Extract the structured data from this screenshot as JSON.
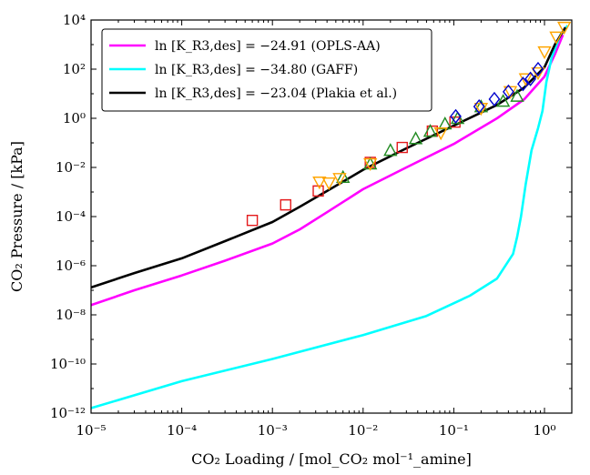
{
  "chart_data": {
    "type": "line",
    "xlabel": "CO₂ Loading / [mol_CO₂ mol⁻¹_amine]",
    "ylabel": "CO₂ Pressure / [kPa]",
    "x_scale": "log",
    "y_scale": "log",
    "xlim": [
      1e-05,
      2
    ],
    "ylim": [
      1e-12,
      10000.0
    ],
    "grid": false,
    "legend_position": "top-left",
    "x_ticks": [
      {
        "value": 1e-05,
        "label": "10⁻⁵"
      },
      {
        "value": 0.0001,
        "label": "10⁻⁴"
      },
      {
        "value": 0.001,
        "label": "10⁻³"
      },
      {
        "value": 0.01,
        "label": "10⁻²"
      },
      {
        "value": 0.1,
        "label": "10⁻¹"
      },
      {
        "value": 1,
        "label": "10⁰"
      }
    ],
    "y_ticks": [
      {
        "value": 1e-12,
        "label": "10⁻¹²"
      },
      {
        "value": 1e-10,
        "label": "10⁻¹⁰"
      },
      {
        "value": 1e-08,
        "label": "10⁻⁸"
      },
      {
        "value": 1e-06,
        "label": "10⁻⁶"
      },
      {
        "value": 0.0001,
        "label": "10⁻⁴"
      },
      {
        "value": 0.01,
        "label": "10⁻²"
      },
      {
        "value": 1,
        "label": "10⁰"
      },
      {
        "value": 100.0,
        "label": "10²"
      },
      {
        "value": 10000.0,
        "label": "10⁴"
      }
    ],
    "series": [
      {
        "name": "ln [K_R3,des] = −24.91 (OPLS-AA)",
        "color": "#ff00ff",
        "x": [
          1e-05,
          3e-05,
          0.0001,
          0.0003,
          0.001,
          0.002,
          0.004,
          0.01,
          0.03,
          0.1,
          0.3,
          0.6,
          1.0,
          1.3,
          1.6
        ],
        "y": [
          2.5e-08,
          1e-07,
          4e-07,
          1.6e-06,
          8e-06,
          3e-05,
          0.00015,
          0.0013,
          0.01,
          0.09,
          1.0,
          6.0,
          50,
          400,
          2500
        ]
      },
      {
        "name": "ln [K_R3,des] = −34.80 (GAFF)",
        "color": "#00ffff",
        "x": [
          1e-05,
          0.0001,
          0.001,
          0.01,
          0.05,
          0.15,
          0.3,
          0.45,
          0.5,
          0.55,
          0.62,
          0.72,
          0.85,
          0.95,
          1.05,
          1.2,
          1.5,
          1.8
        ],
        "y": [
          1.6e-12,
          2e-11,
          1.6e-10,
          1.5e-09,
          9e-09,
          6e-08,
          3e-07,
          3e-06,
          1.5e-05,
          0.0001,
          0.002,
          0.05,
          0.4,
          2.0,
          30,
          300,
          2500,
          6000
        ]
      },
      {
        "name": "ln [K_R3,des] = −23.04 (Plakia et al.)",
        "color": "#000000",
        "x": [
          1e-05,
          3e-05,
          0.0001,
          0.0003,
          0.001,
          0.002,
          0.004,
          0.01,
          0.03,
          0.1,
          0.3,
          0.6,
          1.0,
          1.3,
          1.7
        ],
        "y": [
          1.3e-07,
          5e-07,
          2e-06,
          1e-05,
          6e-05,
          0.00025,
          0.0011,
          0.008,
          0.06,
          0.5,
          3.5,
          18,
          120,
          1000,
          5000
        ]
      }
    ],
    "markers": [
      {
        "shape": "square",
        "color": "#e41a1c",
        "points": [
          [
            0.0006,
            7e-05
          ],
          [
            0.0014,
            0.0003
          ],
          [
            0.0032,
            0.0011
          ],
          [
            0.012,
            0.016
          ],
          [
            0.027,
            0.065
          ],
          [
            0.058,
            0.3
          ],
          [
            0.103,
            0.7
          ]
        ]
      },
      {
        "shape": "triangle-up",
        "color": "#228b22",
        "points": [
          [
            0.006,
            0.004
          ],
          [
            0.012,
            0.014
          ],
          [
            0.02,
            0.05
          ],
          [
            0.038,
            0.15
          ],
          [
            0.055,
            0.3
          ],
          [
            0.08,
            0.6
          ],
          [
            0.11,
            1.0
          ],
          [
            0.2,
            3.0
          ],
          [
            0.35,
            5.0
          ],
          [
            0.5,
            8.0
          ]
        ]
      },
      {
        "shape": "triangle-down",
        "color": "#ffa500",
        "points": [
          [
            0.0033,
            0.0025
          ],
          [
            0.0042,
            0.0023
          ],
          [
            0.0055,
            0.0035
          ],
          [
            0.012,
            0.014
          ],
          [
            0.072,
            0.25
          ],
          [
            0.2,
            2.5
          ],
          [
            0.42,
            12
          ],
          [
            0.62,
            40
          ],
          [
            0.85,
            70
          ],
          [
            1.0,
            500
          ],
          [
            1.35,
            2000
          ],
          [
            1.65,
            5000
          ]
        ]
      },
      {
        "shape": "diamond",
        "color": "#0000cd",
        "points": [
          [
            0.105,
            1.2
          ],
          [
            0.19,
            3.0
          ],
          [
            0.28,
            6.0
          ],
          [
            0.4,
            12
          ],
          [
            0.58,
            25
          ],
          [
            0.7,
            40
          ],
          [
            0.85,
            100
          ]
        ]
      }
    ]
  }
}
